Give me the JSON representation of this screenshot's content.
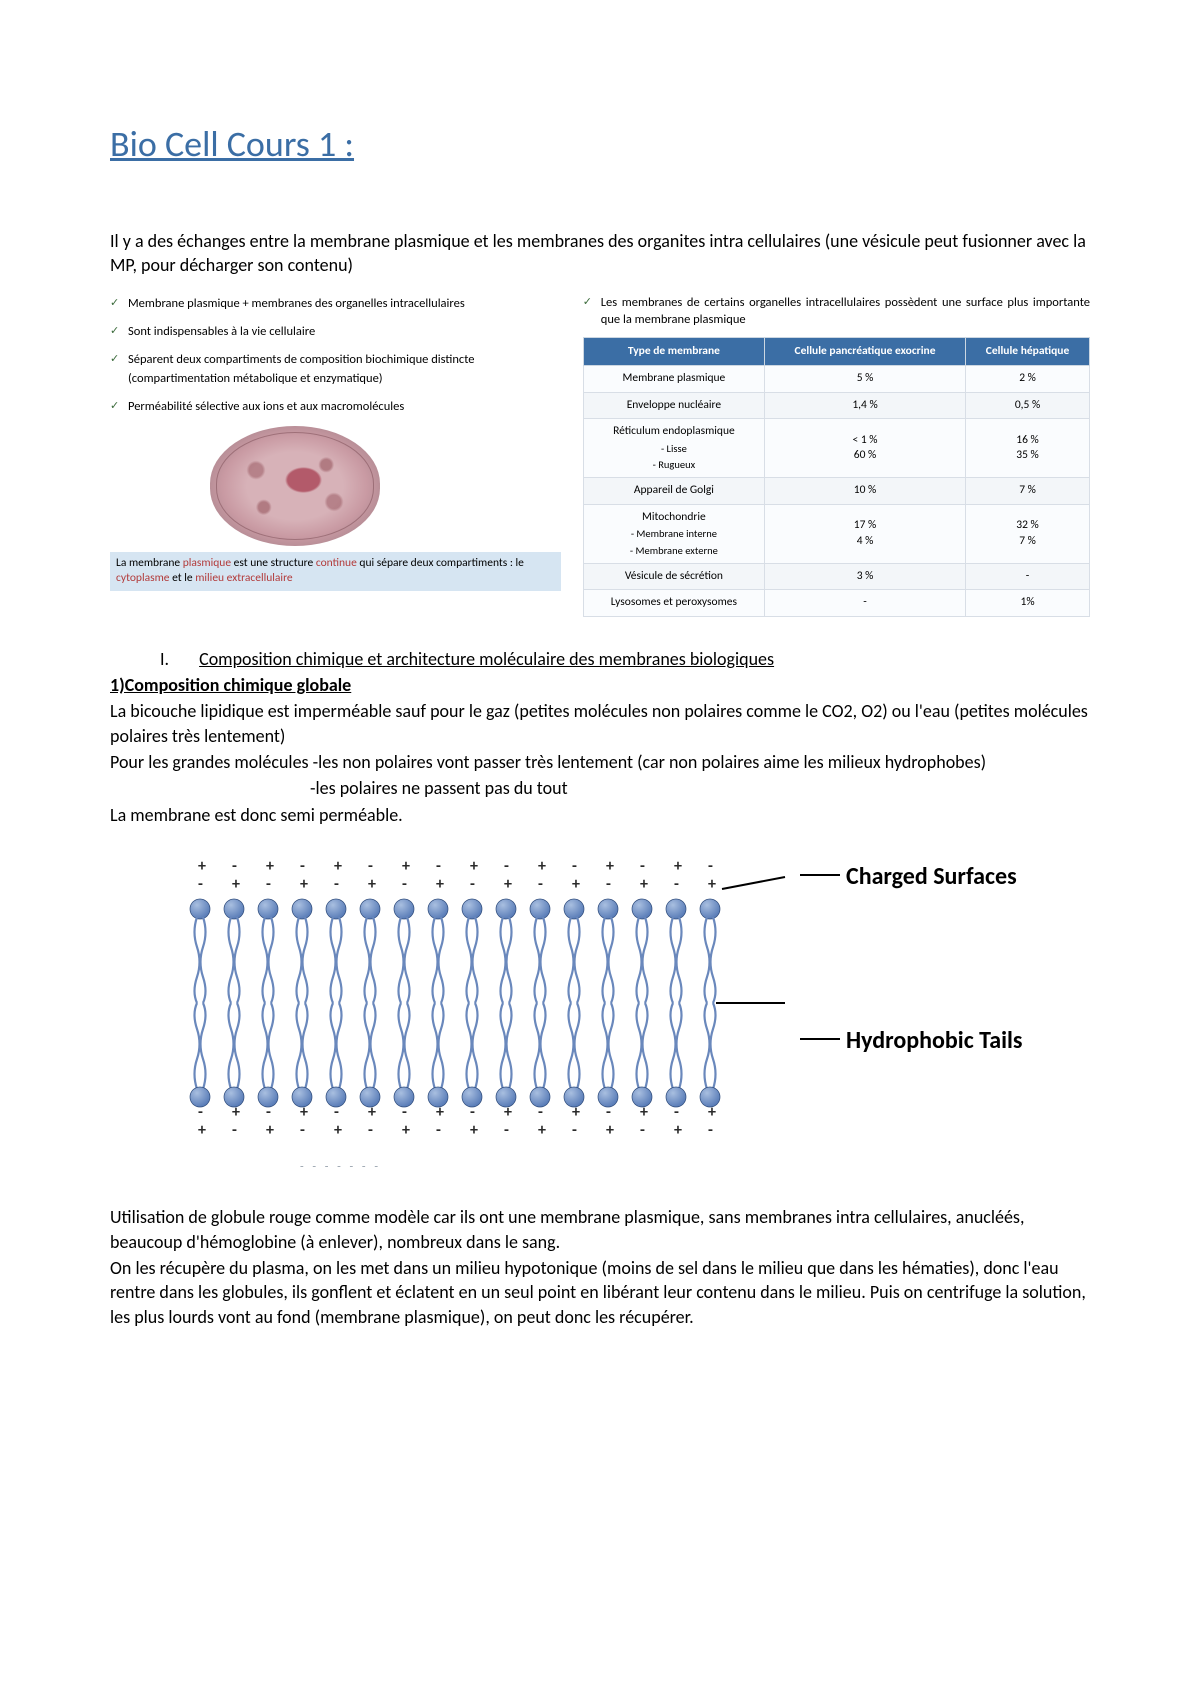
{
  "title": "Bio Cell Cours 1 :",
  "intro": "Il y a des échanges entre la membrane plasmique et les membranes des organites intra cellulaires (une vésicule peut fusionner avec la MP, pour décharger son contenu)",
  "left_checks": {
    "c1": "Membrane plasmique + membranes des organelles intracellulaires",
    "c2": "Sont indispensables à la vie cellulaire",
    "c3": "Séparent deux compartiments de composition biochimique distincte (compartimentation métabolique et enzymatique)",
    "c4": "Perméabilité sélective aux ions et aux macromolécules"
  },
  "footnote": {
    "pre": "La membrane ",
    "plasm": "plasmique",
    "mid1": " est une structure ",
    "cont": "continue",
    "mid2": " qui sépare deux compartiments : le ",
    "cyto": "cytoplasme",
    "mid3": " et le ",
    "milieu": "milieu extracellulaire"
  },
  "right_intro": "Les membranes de certains organelles intracellulaires possèdent une surface plus importante que la membrane plasmique",
  "table": {
    "headers": {
      "h1": "Type de membrane",
      "h2": "Cellule pancréatique exocrine",
      "h3": "Cellule hépatique"
    },
    "rows": [
      {
        "label": "Membrane plasmique",
        "a": "5 %",
        "b": "2 %"
      },
      {
        "label": "Enveloppe nucléaire",
        "a": "1,4 %",
        "b": "0,5 %"
      },
      {
        "label": "Réticulum endoplasmique",
        "sub1": "- Lisse",
        "sub2": "- Rugueux",
        "a": "< 1 %\n60 %",
        "b": "16 %\n35 %"
      },
      {
        "label": "Appareil de Golgi",
        "a": "10 %",
        "b": "7 %"
      },
      {
        "label": "Mitochondrie",
        "sub1": "- Membrane interne",
        "sub2": "- Membrane externe",
        "a": "17 %\n4 %",
        "b": "32 %\n7 %"
      },
      {
        "label": "Vésicule de sécrétion",
        "a": "3 %",
        "b": "-"
      },
      {
        "label": "Lysosomes et peroxysomes",
        "a": "-",
        "b": "1%"
      }
    ]
  },
  "section1": {
    "roman": "I.",
    "title": "Composition chimique et architecture moléculaire des membranes biologiques",
    "sub": "1)Composition chimique globale",
    "p1": "La bicouche lipidique est imperméable sauf pour le gaz (petites molécules non polaires comme le CO2, O2) ou l'eau (petites molécules polaires très lentement)",
    "p2": "Pour les grandes molécules -les non polaires vont passer très lentement (car non polaires aime les milieux hydrophobes)",
    "p3": "-les polaires ne passent pas du tout",
    "p4": "La membrane est donc semi perméable."
  },
  "bilayer": {
    "label1": "Charged Surfaces",
    "label2": "Hydrophobic Tails",
    "colors": {
      "head": "#5a7db8",
      "head_light": "#a9bfe0",
      "tail": "#6a88bc",
      "plus_minus": "#2a2a2a"
    },
    "n_lipids": 16,
    "head_radius": 10,
    "spacing": 34
  },
  "para_globule": {
    "p1": "Utilisation de globule rouge comme modèle car ils ont une membrane plasmique, sans membranes intra cellulaires, anucléés, beaucoup d'hémoglobine (à enlever), nombreux dans le sang.",
    "p2": "On les récupère du plasma, on les met dans un milieu hypotonique (moins de sel dans le milieu que dans les hématies), donc l'eau rentre dans les globules, ils gonflent et éclatent en un seul point en libérant leur contenu dans le milieu. Puis on centrifuge la solution, les plus lourds vont au fond (membrane plasmique), on peut donc les récupérer."
  },
  "dots": "- - - - - - -"
}
